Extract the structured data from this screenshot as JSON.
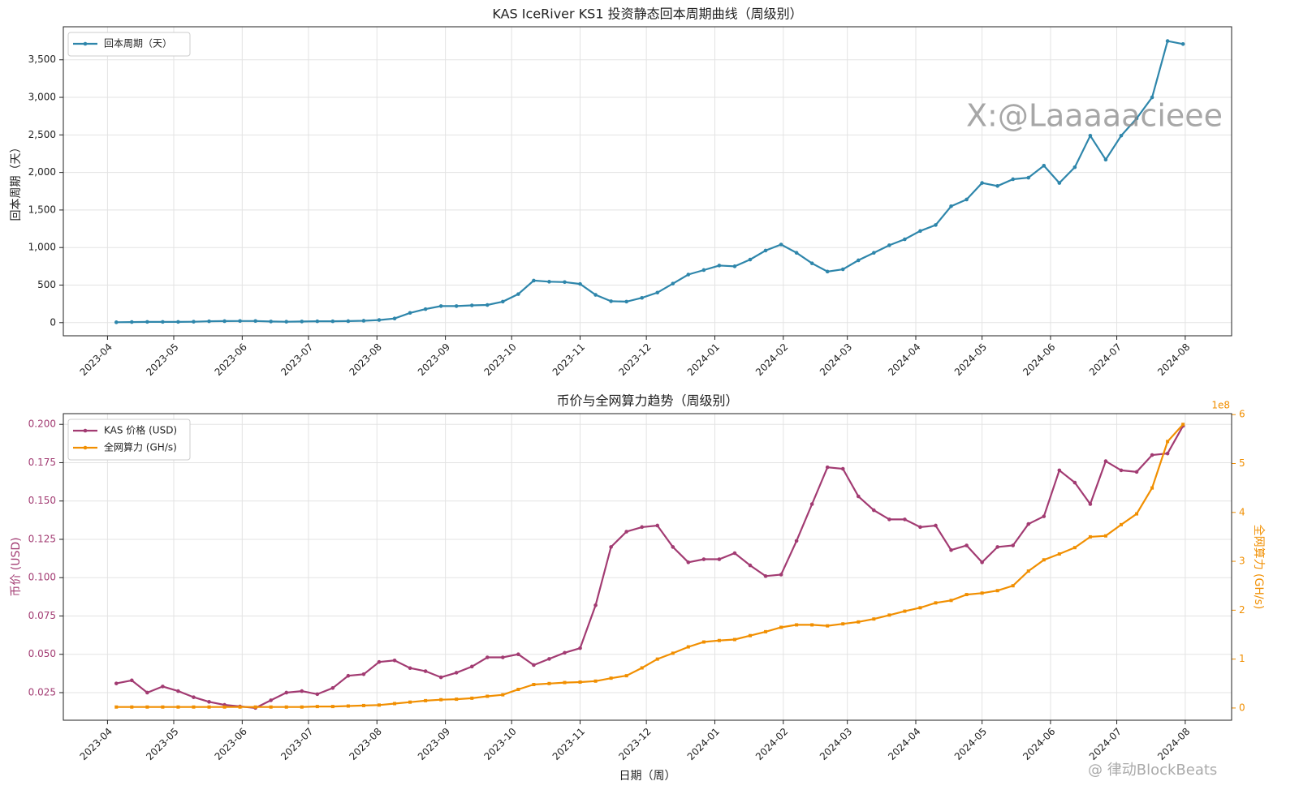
{
  "chart_data": [
    {
      "type": "line",
      "title": "KAS IceRiver KS1 投资静态回本周期曲线（周级别）",
      "ylabel": "回本周期（天）",
      "grid": true,
      "legend": "upper left",
      "xlim": [
        -20,
        509
      ],
      "xticks": [
        {
          "value": 0,
          "label": "2023-04"
        },
        {
          "value": 30,
          "label": "2023-05"
        },
        {
          "value": 61,
          "label": "2023-06"
        },
        {
          "value": 91,
          "label": "2023-07"
        },
        {
          "value": 122,
          "label": "2023-08"
        },
        {
          "value": 153,
          "label": "2023-09"
        },
        {
          "value": 183,
          "label": "2023-10"
        },
        {
          "value": 214,
          "label": "2023-11"
        },
        {
          "value": 244,
          "label": "2023-12"
        },
        {
          "value": 275,
          "label": "2024-01"
        },
        {
          "value": 306,
          "label": "2024-02"
        },
        {
          "value": 335,
          "label": "2024-03"
        },
        {
          "value": 366,
          "label": "2024-04"
        },
        {
          "value": 396,
          "label": "2024-05"
        },
        {
          "value": 427,
          "label": "2024-06"
        },
        {
          "value": 457,
          "label": "2024-07"
        },
        {
          "value": 488,
          "label": "2024-08"
        }
      ],
      "ylim": [
        -175,
        3940
      ],
      "yticks": [
        0,
        500,
        {
          "value": 1000,
          "label": "1,000"
        },
        {
          "value": 1500,
          "label": "1,500"
        },
        {
          "value": 2000,
          "label": "2,000"
        },
        {
          "value": 2500,
          "label": "2,500"
        },
        {
          "value": 3000,
          "label": "3,000"
        },
        {
          "value": 3500,
          "label": "3,500"
        }
      ],
      "x": [
        4,
        11,
        18,
        25,
        32,
        39,
        46,
        53,
        60,
        67,
        74,
        81,
        88,
        95,
        102,
        109,
        116,
        123,
        130,
        137,
        144,
        151,
        158,
        165,
        172,
        179,
        186,
        193,
        200,
        207,
        214,
        221,
        228,
        235,
        242,
        249,
        256,
        263,
        270,
        277,
        284,
        291,
        298,
        305,
        312,
        319,
        326,
        333,
        340,
        347,
        354,
        361,
        368,
        375,
        382,
        389,
        396,
        403,
        410,
        417,
        424,
        431,
        438,
        445,
        452,
        459,
        466,
        473,
        480,
        487
      ],
      "series": [
        {
          "name": "回本周期（天）",
          "color": "#2e86ab",
          "values": [
            5,
            8,
            10,
            10,
            10,
            12,
            18,
            20,
            22,
            22,
            15,
            12,
            15,
            18,
            18,
            20,
            25,
            35,
            55,
            130,
            180,
            220,
            220,
            230,
            235,
            280,
            380,
            560,
            545,
            540,
            515,
            370,
            285,
            280,
            330,
            400,
            520,
            640,
            700,
            760,
            750,
            840,
            960,
            1040,
            930,
            790,
            680,
            710,
            830,
            930,
            1030,
            1110,
            1220,
            1300,
            1550,
            1640,
            1860,
            1820,
            1910,
            1930,
            2090,
            1860,
            2070,
            2490,
            2170,
            2490,
            2720,
            3000,
            3750,
            3710
          ]
        }
      ]
    },
    {
      "type": "line",
      "title": "币价与全网算力趋势（周级别）",
      "xlabel": "日期（周）",
      "ylabel": "币价 (USD)",
      "y2label": "全网算力 (GH/s)",
      "y2_offset": "1e8",
      "grid": true,
      "legend": "upper left",
      "xlim": [
        -20,
        509
      ],
      "xticks": [
        {
          "value": 0,
          "label": "2023-04"
        },
        {
          "value": 30,
          "label": "2023-05"
        },
        {
          "value": 61,
          "label": "2023-06"
        },
        {
          "value": 91,
          "label": "2023-07"
        },
        {
          "value": 122,
          "label": "2023-08"
        },
        {
          "value": 153,
          "label": "2023-09"
        },
        {
          "value": 183,
          "label": "2023-10"
        },
        {
          "value": 214,
          "label": "2023-11"
        },
        {
          "value": 244,
          "label": "2023-12"
        },
        {
          "value": 275,
          "label": "2024-01"
        },
        {
          "value": 306,
          "label": "2024-02"
        },
        {
          "value": 335,
          "label": "2024-03"
        },
        {
          "value": 366,
          "label": "2024-04"
        },
        {
          "value": 396,
          "label": "2024-05"
        },
        {
          "value": 427,
          "label": "2024-06"
        },
        {
          "value": 457,
          "label": "2024-07"
        },
        {
          "value": 488,
          "label": "2024-08"
        }
      ],
      "ylim": [
        0.007,
        0.207
      ],
      "yticks": [
        0.025,
        {
          "value": 0.05,
          "label": "0.050"
        },
        0.075,
        {
          "value": 0.1,
          "label": "0.100"
        },
        0.125,
        {
          "value": 0.15,
          "label": "0.150"
        },
        0.175,
        {
          "value": 0.2,
          "label": "0.200"
        }
      ],
      "y2lim": [
        -0.25,
        6.02
      ],
      "y2ticks": [
        0,
        1,
        2,
        3,
        4,
        5,
        6
      ],
      "x": [
        4,
        11,
        18,
        25,
        32,
        39,
        46,
        53,
        60,
        67,
        74,
        81,
        88,
        95,
        102,
        109,
        116,
        123,
        130,
        137,
        144,
        151,
        158,
        165,
        172,
        179,
        186,
        193,
        200,
        207,
        214,
        221,
        228,
        235,
        242,
        249,
        256,
        263,
        270,
        277,
        284,
        291,
        298,
        305,
        312,
        319,
        326,
        333,
        340,
        347,
        354,
        361,
        368,
        375,
        382,
        389,
        396,
        403,
        410,
        417,
        424,
        431,
        438,
        445,
        452,
        459,
        466,
        473,
        480,
        487
      ],
      "series": [
        {
          "name": "KAS 价格 (USD)",
          "color": "#a23b72",
          "values": [
            0.031,
            0.033,
            0.025,
            0.029,
            0.026,
            0.022,
            0.019,
            0.017,
            0.016,
            0.015,
            0.02,
            0.025,
            0.026,
            0.024,
            0.028,
            0.036,
            0.037,
            0.045,
            0.046,
            0.041,
            0.039,
            0.035,
            0.038,
            0.042,
            0.048,
            0.048,
            0.05,
            0.043,
            0.047,
            0.051,
            0.054,
            0.082,
            0.12,
            0.13,
            0.133,
            0.134,
            0.12,
            0.11,
            0.112,
            0.112,
            0.116,
            0.108,
            0.101,
            0.102,
            0.124,
            0.148,
            0.172,
            0.171,
            0.153,
            0.144,
            0.138,
            0.138,
            0.133,
            0.134,
            0.118,
            0.121,
            0.11,
            0.12,
            0.121,
            0.135,
            0.14,
            0.17,
            0.162,
            0.148,
            0.176,
            0.17,
            0.169,
            0.18,
            0.181,
            0.199
          ]
        },
        {
          "name": "全网算力 (GH/s)",
          "color": "#f18f01",
          "axis": "y2",
          "values": [
            0.02,
            0.02,
            0.02,
            0.02,
            0.02,
            0.02,
            0.02,
            0.02,
            0.02,
            0.02,
            0.02,
            0.02,
            0.02,
            0.03,
            0.03,
            0.04,
            0.05,
            0.06,
            0.09,
            0.12,
            0.15,
            0.17,
            0.18,
            0.2,
            0.24,
            0.27,
            0.38,
            0.48,
            0.5,
            0.52,
            0.53,
            0.55,
            0.61,
            0.66,
            0.82,
            1.0,
            1.12,
            1.25,
            1.35,
            1.38,
            1.4,
            1.48,
            1.56,
            1.65,
            1.7,
            1.7,
            1.68,
            1.72,
            1.76,
            1.82,
            1.9,
            1.98,
            2.05,
            2.15,
            2.2,
            2.32,
            2.35,
            2.4,
            2.5,
            2.8,
            3.03,
            3.15,
            3.28,
            3.5,
            3.52,
            3.75,
            3.97,
            4.5,
            5.45,
            5.8
          ]
        }
      ]
    }
  ],
  "watermark": "X:@Laaaaacieee",
  "footer_watermark": "@ 律动BlockBeats"
}
